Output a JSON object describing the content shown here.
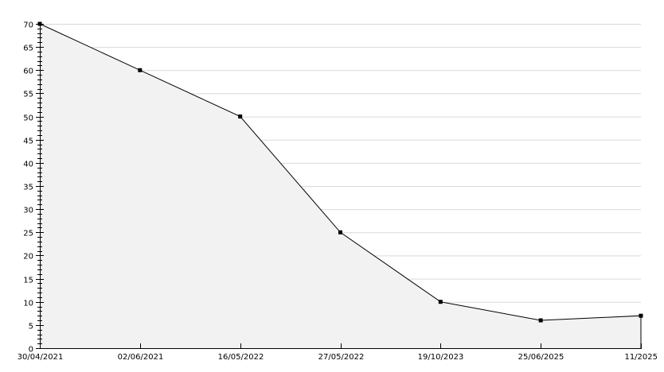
{
  "chart_data": {
    "type": "area",
    "title": "",
    "xlabel": "",
    "ylabel": "",
    "categories": [
      "30/04/2021",
      "02/06/2021",
      "16/05/2022",
      "27/05/2022",
      "19/10/2023",
      "25/06/2025",
      "11/2025"
    ],
    "values": [
      70,
      60,
      50,
      25,
      10,
      6,
      7
    ],
    "ylim": [
      0,
      70
    ],
    "y_major_step": 5,
    "y_minor_step": 1,
    "grid": true,
    "colors": {
      "line": "#000000",
      "fill": "#f2f2f2",
      "grid": "#d9d9d9",
      "axis": "#000000"
    }
  }
}
